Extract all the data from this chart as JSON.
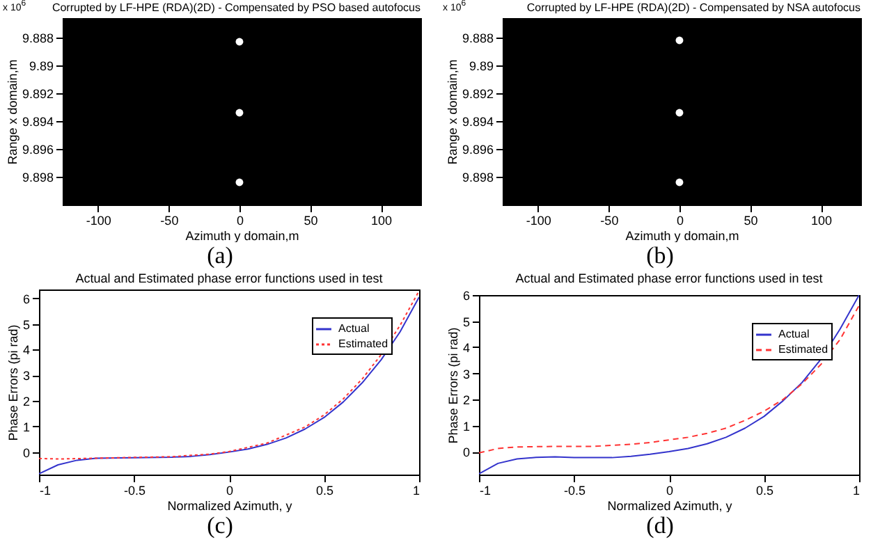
{
  "chart_data": [
    {
      "type": "scatter",
      "title": "Corrupted by LF-HPE (RDA)(2D) - Compensated by PSO based autofocus",
      "xlabel": "Azimuth y domain,m",
      "ylabel": "Range x domain,m",
      "annotations": [
        "x 10$^{6}$",
        "(a)"
      ],
      "xlim": [
        -125,
        128
      ],
      "xticks": [
        -100,
        -50,
        0,
        50,
        100
      ],
      "ylim": [
        9.9,
        9.8866
      ],
      "yticks": [
        9.888,
        9.89,
        9.892,
        9.894,
        9.896,
        9.898
      ],
      "marker": "circle",
      "series": [
        {
          "color": "#ffffff",
          "x": [
            0,
            0,
            0
          ],
          "values": [
            9.8883,
            9.8934,
            9.8984
          ]
        }
      ]
    },
    {
      "type": "scatter",
      "title": "Corrupted by LF-HPE (RDA)(2D) - Compensated by NSA autofocus",
      "xlabel": "Azimuth y domain,m",
      "ylabel": "Range x domain,m",
      "annotations": [
        "x 10$^{6}$",
        "(b)"
      ],
      "xlim": [
        -125,
        128
      ],
      "xticks": [
        -100,
        -50,
        0,
        50,
        100
      ],
      "ylim": [
        9.9,
        9.8866
      ],
      "yticks": [
        9.888,
        9.89,
        9.892,
        9.894,
        9.896,
        9.898
      ],
      "marker": "circle",
      "series": [
        {
          "color": "#ffffff",
          "x": [
            0,
            0,
            0
          ],
          "values": [
            9.8882,
            9.8934,
            9.8984
          ]
        }
      ]
    },
    {
      "type": "line",
      "title": "Actual and Estimated phase error functions used in test",
      "xlabel": "Normalized Azimuth, y",
      "ylabel": "Phase Errors (pi rad)",
      "annotations": [
        "(c)"
      ],
      "xlim": [
        -1,
        1
      ],
      "xticks": [
        -1,
        -0.5,
        0,
        0.5,
        1
      ],
      "ylim": [
        -0.88,
        6.35
      ],
      "yticks": [
        0,
        1,
        2,
        3,
        4,
        5,
        6
      ],
      "legend": "top right",
      "series": [
        {
          "name": "Actual",
          "color": "#3333cc",
          "line_style": "solid",
          "x": [
            -1,
            -0.9,
            -0.8,
            -0.7,
            -0.5,
            -0.3,
            -0.2,
            -0.1,
            0,
            0.1,
            0.2,
            0.3,
            0.4,
            0.5,
            0.6,
            0.7,
            0.8,
            0.9,
            1
          ],
          "values": [
            -0.85,
            -0.5,
            -0.32,
            -0.24,
            -0.22,
            -0.2,
            -0.17,
            -0.1,
            0,
            0.12,
            0.3,
            0.55,
            0.9,
            1.35,
            1.95,
            2.7,
            3.6,
            4.7,
            6.05
          ]
        },
        {
          "name": "Estimated",
          "color": "#ff3333",
          "line_style": "dotted",
          "x": [
            -1,
            -0.9,
            -0.7,
            -0.5,
            -0.3,
            -0.1,
            0,
            0.2,
            0.4,
            0.5,
            0.6,
            0.7,
            0.8,
            0.9,
            1
          ],
          "values": [
            -0.25,
            -0.27,
            -0.24,
            -0.21,
            -0.18,
            -0.08,
            0.02,
            0.35,
            0.98,
            1.45,
            2.07,
            2.85,
            3.8,
            4.95,
            6.3
          ]
        }
      ]
    },
    {
      "type": "line",
      "title": "Actual and Estimated phase error functions used in test",
      "xlabel": "Normalized Azimuth, y",
      "ylabel": "Phase Errors (pi rad)",
      "annotations": [
        "(d)"
      ],
      "xlim": [
        -1,
        1
      ],
      "xticks": [
        -1,
        -0.5,
        0,
        0.5,
        1
      ],
      "ylim": [
        -0.88,
        6
      ],
      "yticks": [
        0,
        1,
        2,
        3,
        4,
        5,
        6
      ],
      "legend": "top right",
      "series": [
        {
          "name": "Actual",
          "color": "#3333cc",
          "line_style": "solid",
          "x": [
            -1,
            -0.9,
            -0.8,
            -0.7,
            -0.6,
            -0.5,
            -0.3,
            -0.2,
            -0.1,
            0,
            0.1,
            0.2,
            0.3,
            0.4,
            0.5,
            0.6,
            0.7,
            0.8,
            0.9,
            1
          ],
          "values": [
            -0.85,
            -0.45,
            -0.28,
            -0.22,
            -0.2,
            -0.23,
            -0.23,
            -0.18,
            -0.1,
            0,
            0.12,
            0.3,
            0.55,
            0.9,
            1.35,
            1.95,
            2.65,
            3.55,
            4.7,
            6.0
          ]
        },
        {
          "name": "Estimated",
          "color": "#ff3333",
          "line_style": "dashed",
          "x": [
            -1,
            -0.9,
            -0.8,
            -0.6,
            -0.4,
            -0.2,
            -0.1,
            0,
            0.1,
            0.2,
            0.3,
            0.4,
            0.5,
            0.6,
            0.7,
            0.8,
            0.9,
            1
          ],
          "values": [
            -0.05,
            0.12,
            0.18,
            0.2,
            0.2,
            0.28,
            0.35,
            0.45,
            0.55,
            0.7,
            0.9,
            1.2,
            1.55,
            2.0,
            2.6,
            3.35,
            4.3,
            5.6
          ]
        }
      ]
    }
  ]
}
